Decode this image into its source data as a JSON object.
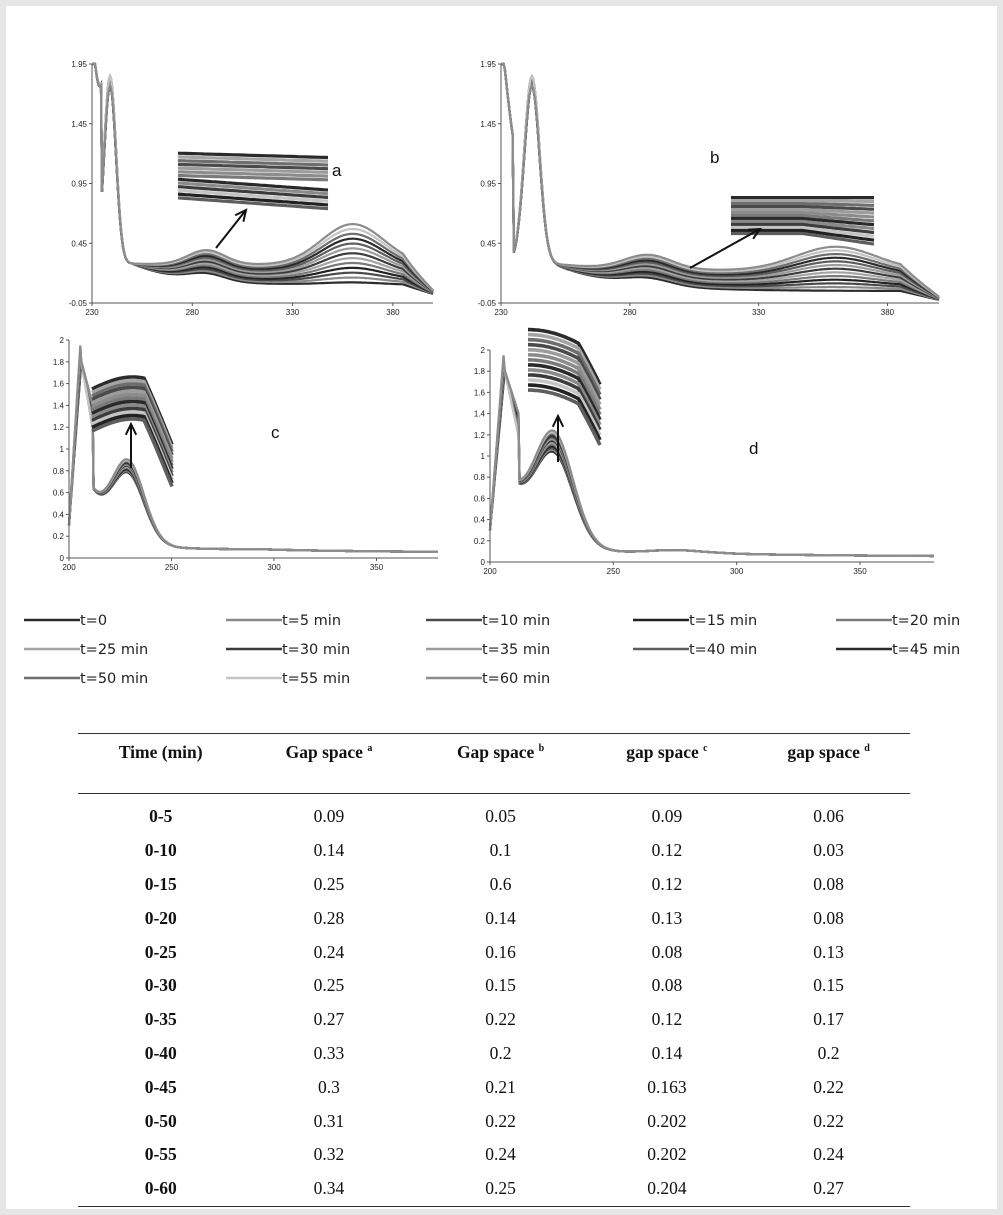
{
  "chart_data": [
    {
      "type": "line",
      "panel": "a",
      "xlim": [
        230,
        400
      ],
      "ylim": [
        -0.05,
        1.95
      ],
      "xticks": [
        230,
        280,
        330,
        380
      ],
      "yticks": [
        -0.05,
        0.45,
        0.95,
        1.45,
        1.95
      ],
      "legend": "bottom",
      "grid": false
    },
    {
      "type": "line",
      "panel": "b",
      "xlim": [
        230,
        400
      ],
      "ylim": [
        -0.05,
        1.95
      ],
      "xticks": [
        230,
        280,
        330,
        380
      ],
      "yticks": [
        -0.05,
        0.45,
        0.95,
        1.45,
        1.95
      ],
      "legend": "bottom",
      "grid": false
    },
    {
      "type": "line",
      "panel": "c",
      "xlim": [
        200,
        380
      ],
      "ylim": [
        0,
        2
      ],
      "xticks": [
        200,
        250,
        300,
        350
      ],
      "yticks": [
        0,
        0.2,
        0.4,
        0.6,
        0.8,
        1,
        1.2,
        1.4,
        1.6,
        1.8,
        2
      ],
      "legend": "bottom",
      "grid": false
    },
    {
      "type": "line",
      "panel": "d",
      "xlim": [
        200,
        380
      ],
      "ylim": [
        0,
        2
      ],
      "xticks": [
        200,
        250,
        300,
        350
      ],
      "yticks": [
        0,
        0.2,
        0.4,
        0.6,
        0.8,
        1,
        1.2,
        1.4,
        1.6,
        1.8,
        2
      ],
      "legend": "bottom",
      "grid": false
    },
    {
      "type": "table",
      "headers": [
        "Time (min)",
        "Gap space",
        "Gap space",
        "gap space",
        "gap space"
      ],
      "header_superscripts": [
        "",
        "a",
        "b",
        "c",
        "d"
      ],
      "rows": [
        [
          "0-5",
          "0.09",
          "0.05",
          "0.09",
          "0.06"
        ],
        [
          "0-10",
          "0.14",
          "0.1",
          "0.12",
          "0.03"
        ],
        [
          "0-15",
          "0.25",
          "0.6",
          "0.12",
          "0.08"
        ],
        [
          "0-20",
          "0.28",
          "0.14",
          "0.13",
          "0.08"
        ],
        [
          "0-25",
          "0.24",
          "0.16",
          "0.08",
          "0.13"
        ],
        [
          "0-30",
          "0.25",
          "0.15",
          "0.08",
          "0.15"
        ],
        [
          "0-35",
          "0.27",
          "0.22",
          "0.12",
          "0.17"
        ],
        [
          "0-40",
          "0.33",
          "0.2",
          "0.14",
          "0.2"
        ],
        [
          "0-45",
          "0.3",
          "0.21",
          "0.163",
          "0.22"
        ],
        [
          "0-50",
          "0.31",
          "0.22",
          "0.202",
          "0.22"
        ],
        [
          "0-55",
          "0.32",
          "0.24",
          "0.202",
          "0.24"
        ],
        [
          "0-60",
          "0.34",
          "0.25",
          "0.204",
          "0.27"
        ]
      ]
    }
  ],
  "panels": {
    "a": "a",
    "b": "b",
    "c": "c",
    "d": "d"
  },
  "series": [
    {
      "name": "t=0",
      "color": "#2b2b2b"
    },
    {
      "name": "t=5 min",
      "color": "#8a8a8a"
    },
    {
      "name": "t=10 min",
      "color": "#4a4a4a"
    },
    {
      "name": "t=15 min",
      "color": "#222222"
    },
    {
      "name": "t=20 min",
      "color": "#7a7a7a"
    },
    {
      "name": "t=25 min",
      "color": "#a5a5a5"
    },
    {
      "name": "t=30 min",
      "color": "#3c3c3c"
    },
    {
      "name": "t=35 min",
      "color": "#9c9c9c"
    },
    {
      "name": "t=40 min",
      "color": "#5e5e5e"
    },
    {
      "name": "t=45 min",
      "color": "#2a2a2a"
    },
    {
      "name": "t=50 min",
      "color": "#6e6e6e"
    },
    {
      "name": "t=55 min",
      "color": "#c4c4c4"
    },
    {
      "name": "t=60 min",
      "color": "#8c8c8c"
    }
  ]
}
